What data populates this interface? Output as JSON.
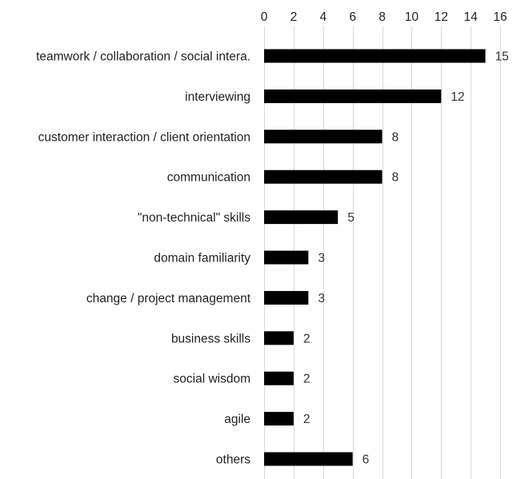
{
  "chart_data": {
    "type": "bar",
    "orientation": "horizontal",
    "title": "",
    "xlabel": "",
    "ylabel": "",
    "categories": [
      "teamwork / collaboration / social intera.",
      "interviewing",
      "customer interaction / client orientation",
      "communication",
      "\"non-technical\" skills",
      "domain familiarity",
      "change / project management",
      "business skills",
      "social wisdom",
      "agile",
      "others"
    ],
    "values": [
      15,
      12,
      8,
      8,
      5,
      3,
      3,
      2,
      2,
      2,
      6
    ],
    "value_labels": [
      "15",
      "12",
      "8",
      "8",
      "5",
      "3",
      "3",
      "2",
      "2",
      "2",
      "6"
    ],
    "xlim": [
      0,
      16
    ],
    "xticks": [
      0,
      2,
      4,
      6,
      8,
      10,
      12,
      14,
      16
    ],
    "xtick_labels": [
      "0",
      "2",
      "4",
      "6",
      "8",
      "10",
      "12",
      "14",
      "16"
    ],
    "axis_position": "top",
    "grid": true,
    "legend": "none",
    "colors": {
      "bar": "#000000",
      "grid": "#d9d9d9",
      "text": "#222222"
    }
  }
}
